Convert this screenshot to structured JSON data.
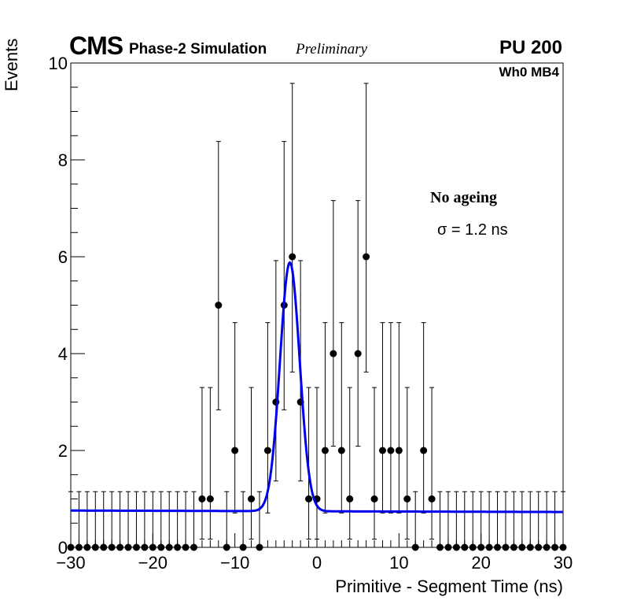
{
  "chart_data": {
    "type": "scatter",
    "experiment": "CMS",
    "simulation_label": "Phase-2 Simulation",
    "status_label": "Preliminary",
    "pileup_label": "PU 200",
    "station_label": "Wh0 MB4",
    "condition_label": "No ageing",
    "sigma_label": "σ = 1.2 ns",
    "xlabel": "Primitive - Segment Time (ns)",
    "ylabel": "Events",
    "xlim": [
      -30,
      30
    ],
    "ylim": [
      0,
      10
    ],
    "x_ticks": [
      -30,
      -20,
      -10,
      0,
      10,
      20,
      30
    ],
    "x_tick_labels": [
      "−30",
      "−20",
      "−10",
      "0",
      "10",
      "20",
      "30"
    ],
    "y_ticks": [
      0,
      2,
      4,
      6,
      8,
      10
    ],
    "y_tick_labels": [
      "0",
      "2",
      "4",
      "6",
      "8",
      "10"
    ],
    "series": [
      {
        "name": "Simulated events",
        "style": "markers with error bars",
        "x": [
          -30,
          -29,
          -28,
          -27,
          -26,
          -25,
          -24,
          -23,
          -22,
          -21,
          -20,
          -19,
          -18,
          -17,
          -16,
          -15,
          -14,
          -13,
          -12,
          -11,
          -10,
          -9,
          -8,
          -7,
          -6,
          -5,
          -4,
          -3,
          -2,
          -1,
          0,
          1,
          2,
          3,
          4,
          5,
          6,
          7,
          8,
          9,
          10,
          11,
          12,
          13,
          14,
          15,
          16,
          17,
          18,
          19,
          20,
          21,
          22,
          23,
          24,
          25,
          26,
          27,
          28,
          29,
          30
        ],
        "values": [
          0,
          0,
          0,
          0,
          0,
          0,
          0,
          0,
          0,
          0,
          0,
          0,
          0,
          0,
          0,
          0,
          1,
          1,
          5,
          0,
          2,
          0,
          1,
          0,
          2,
          3,
          5,
          6,
          3,
          1,
          1,
          2,
          4,
          2,
          1,
          4,
          6,
          1,
          2,
          2,
          2,
          1,
          0,
          2,
          1,
          0,
          0,
          0,
          0,
          0,
          0,
          0,
          0,
          0,
          0,
          0,
          0,
          0,
          0,
          0,
          0
        ],
        "err_low": [
          0,
          0,
          0,
          0,
          0,
          0,
          0,
          0,
          0,
          0,
          0,
          0,
          0,
          0,
          0,
          0,
          0.83,
          0.83,
          2.16,
          0,
          1.29,
          0,
          0.83,
          0,
          1.29,
          1.63,
          2.16,
          2.38,
          1.63,
          0.83,
          0.83,
          1.29,
          1.91,
          1.29,
          0.83,
          1.91,
          2.38,
          0.83,
          1.29,
          1.29,
          1.29,
          0.83,
          0,
          1.29,
          0.83,
          0,
          0,
          0,
          0,
          0,
          0,
          0,
          0,
          0,
          0,
          0,
          0,
          0,
          0,
          0,
          0
        ],
        "err_high": [
          1.15,
          1.15,
          1.15,
          1.15,
          1.15,
          1.15,
          1.15,
          1.15,
          1.15,
          1.15,
          1.15,
          1.15,
          1.15,
          1.15,
          1.15,
          1.15,
          2.3,
          2.3,
          3.38,
          1.15,
          2.64,
          1.15,
          2.3,
          1.15,
          2.64,
          2.92,
          3.38,
          3.58,
          2.92,
          2.3,
          2.3,
          2.64,
          3.16,
          2.64,
          2.3,
          3.16,
          3.58,
          2.3,
          2.64,
          2.64,
          2.64,
          2.3,
          1.15,
          2.64,
          2.3,
          1.15,
          1.15,
          1.15,
          1.15,
          1.15,
          1.15,
          1.15,
          1.15,
          1.15,
          1.15,
          1.15,
          1.15,
          1.15,
          1.15,
          1.15,
          1.15
        ],
        "color": "#000000"
      },
      {
        "name": "Gaussian fit",
        "style": "line",
        "function": "gaussian plus linear background",
        "mean": -3.3,
        "sigma": 1.2,
        "peak": 5.88,
        "background_at_xmin": 0.76,
        "background_at_xmax": 0.73,
        "color": "#0000ee"
      }
    ]
  }
}
